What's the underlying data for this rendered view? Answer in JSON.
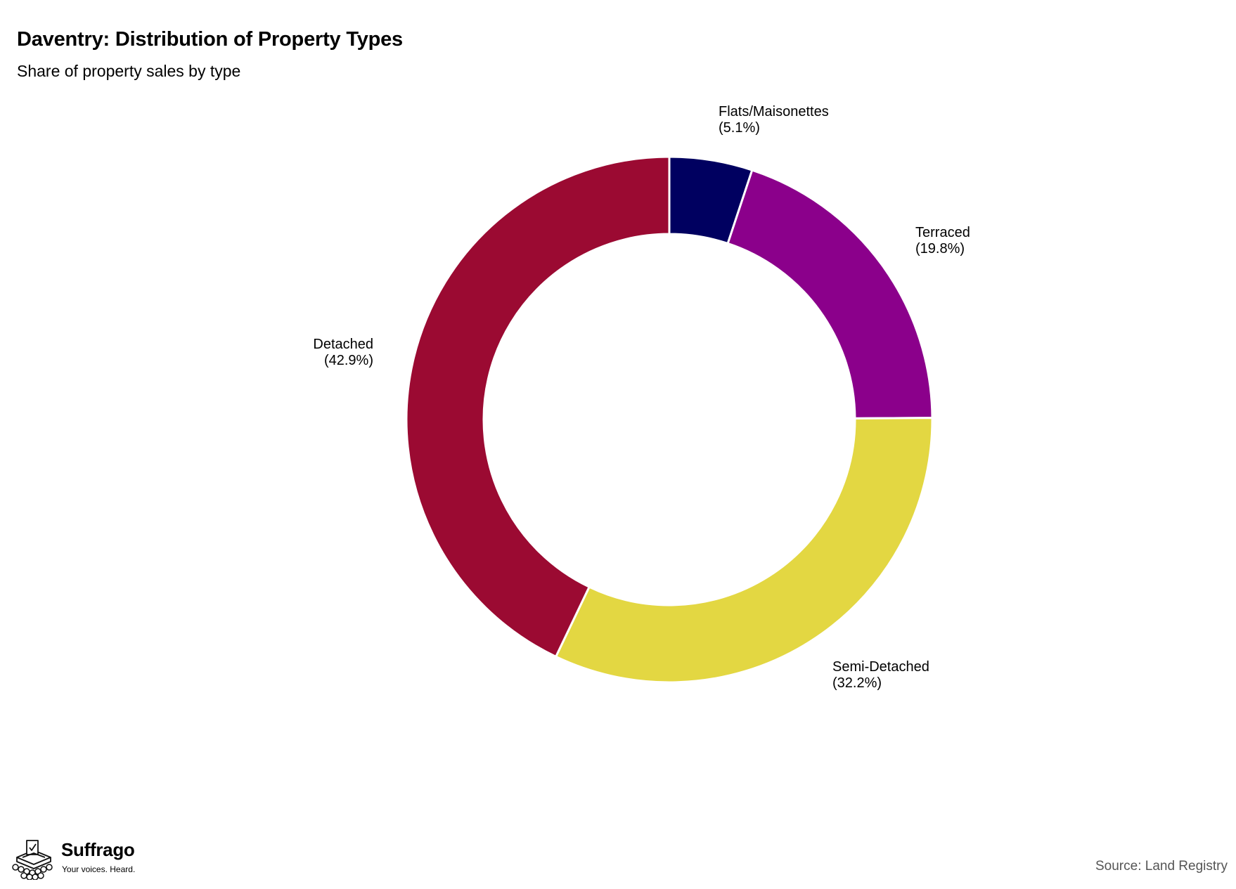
{
  "chart_data": {
    "type": "pie",
    "title": "Daventry: Distribution of Property Types",
    "subtitle": "Share of property sales by type",
    "donut": true,
    "start": "top",
    "direction": "clockwise",
    "slices": [
      {
        "label": "Flats/Maisonettes",
        "value": 5.1,
        "display": "(5.1%)",
        "color": "#000060"
      },
      {
        "label": "Terraced",
        "value": 19.8,
        "display": "(19.8%)",
        "color": "#8b008b"
      },
      {
        "label": "Semi-Detached",
        "value": 32.2,
        "display": "(32.2%)",
        "color": "#e3d742"
      },
      {
        "label": "Detached",
        "value": 42.9,
        "display": "(42.9%)",
        "color": "#9b0a32"
      }
    ]
  },
  "branding": {
    "name": "Suffrago",
    "tagline": "Your voices. Heard.",
    "icon": "ballot-box-crowd-icon"
  },
  "footer": {
    "source": "Source: Land Registry"
  }
}
